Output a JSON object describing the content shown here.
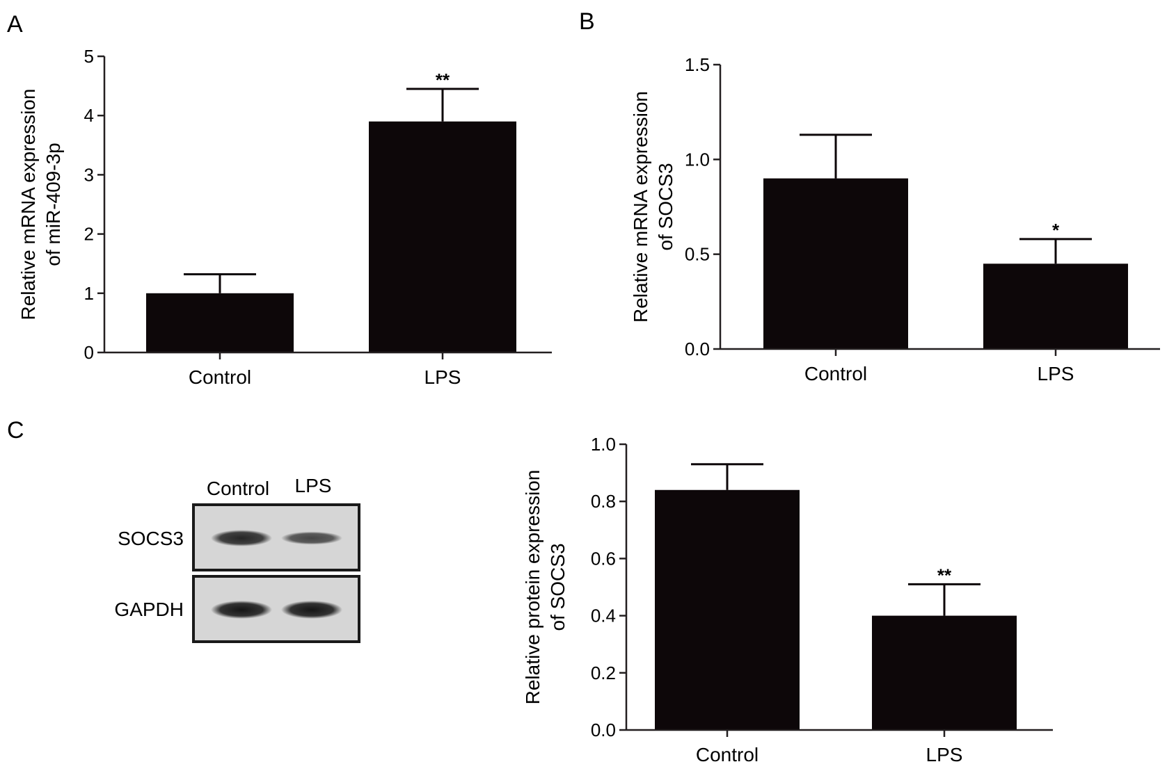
{
  "panels": {
    "a": {
      "letter": "A"
    },
    "b": {
      "letter": "B"
    },
    "c": {
      "letter": "C"
    }
  },
  "western_blot": {
    "lanes": [
      "Control",
      "LPS"
    ],
    "rows": [
      {
        "label": "SOCS3",
        "band_intensity": [
          0.85,
          0.55
        ]
      },
      {
        "label": "GAPDH",
        "band_intensity": [
          1.0,
          1.0
        ]
      }
    ]
  },
  "colors": {
    "bar": "#0d0709",
    "axis": "#231f20",
    "blot_bg": "#d8d8d8",
    "band": "#161616"
  },
  "chart_data": [
    {
      "id": "A",
      "type": "bar",
      "categories": [
        "Control",
        "LPS"
      ],
      "values": [
        1.0,
        3.9
      ],
      "error": [
        0.32,
        0.55
      ],
      "significance": [
        "",
        "**"
      ],
      "ylabel_lines": [
        "Relative mRNA expression",
        "of miR-409-3p"
      ],
      "ylim": [
        0,
        5
      ],
      "yticks": [
        0,
        1,
        2,
        3,
        4,
        5
      ],
      "ytick_labels": [
        "0",
        "1",
        "2",
        "3",
        "4",
        "5"
      ],
      "grid": false,
      "legend": "none"
    },
    {
      "id": "B",
      "type": "bar",
      "categories": [
        "Control",
        "LPS"
      ],
      "values": [
        0.9,
        0.45
      ],
      "error": [
        0.23,
        0.13
      ],
      "significance": [
        "",
        "*"
      ],
      "ylabel_lines": [
        "Relative mRNA expression",
        "of SOCS3"
      ],
      "ylim": [
        0,
        1.5
      ],
      "yticks": [
        0,
        0.5,
        1.0,
        1.5
      ],
      "ytick_labels": [
        "0.0",
        "0.5",
        "1.0",
        "1.5"
      ],
      "grid": false,
      "legend": "none"
    },
    {
      "id": "C",
      "type": "bar",
      "categories": [
        "Control",
        "LPS"
      ],
      "values": [
        0.84,
        0.4
      ],
      "error": [
        0.09,
        0.11
      ],
      "significance": [
        "",
        "**"
      ],
      "ylabel_lines": [
        "Relative protein expression",
        "of SOCS3"
      ],
      "ylim": [
        0,
        1.0
      ],
      "yticks": [
        0,
        0.2,
        0.4,
        0.6,
        0.8,
        1.0
      ],
      "ytick_labels": [
        "0.0",
        "0.2",
        "0.4",
        "0.6",
        "0.8",
        "1.0"
      ],
      "grid": false,
      "legend": "none"
    }
  ]
}
